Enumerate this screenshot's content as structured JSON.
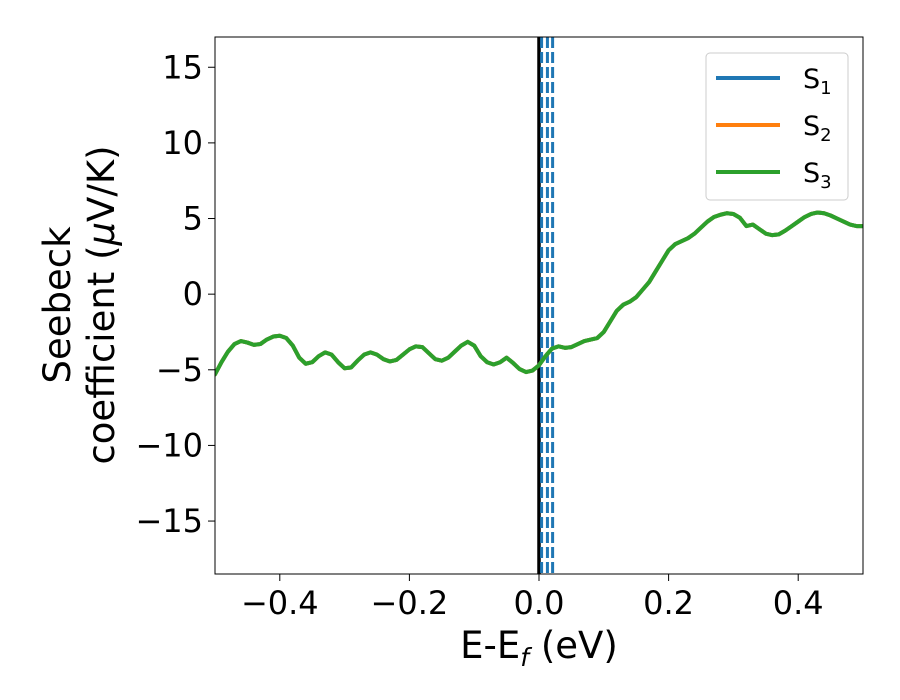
{
  "chart_data": {
    "type": "line",
    "xlabel": "E-E",
    "xlabel_sub": "f",
    "xlabel_unit": " (eV)",
    "ylabel_line1": "Seebeck",
    "ylabel_line2_prefix": "coefficient  (",
    "ylabel_mu": "μ",
    "ylabel_line2_suffix": "V/K)",
    "xlim": [
      -0.5,
      0.5
    ],
    "ylim": [
      -18.5,
      17
    ],
    "xticks": [
      -0.4,
      -0.2,
      0.0,
      0.2,
      0.4
    ],
    "xtick_labels": [
      "−0.4",
      "−0.2",
      "0.0",
      "0.2",
      "0.4"
    ],
    "yticks": [
      -15,
      -10,
      -5,
      0,
      5,
      10,
      15
    ],
    "ytick_labels": [
      "−15",
      "−10",
      "−5",
      "0",
      "5",
      "10",
      "15"
    ],
    "grid": false,
    "legend_position": "top-right",
    "x": [
      -0.5,
      -0.49,
      -0.48,
      -0.47,
      -0.46,
      -0.45,
      -0.44,
      -0.43,
      -0.42,
      -0.41,
      -0.4,
      -0.39,
      -0.38,
      -0.37,
      -0.36,
      -0.35,
      -0.34,
      -0.33,
      -0.32,
      -0.31,
      -0.3,
      -0.29,
      -0.28,
      -0.27,
      -0.26,
      -0.25,
      -0.24,
      -0.23,
      -0.22,
      -0.21,
      -0.2,
      -0.19,
      -0.18,
      -0.17,
      -0.16,
      -0.15,
      -0.14,
      -0.13,
      -0.12,
      -0.11,
      -0.1,
      -0.09,
      -0.08,
      -0.07,
      -0.06,
      -0.05,
      -0.04,
      -0.03,
      -0.02,
      -0.01,
      0.0,
      0.01,
      0.02,
      0.03,
      0.04,
      0.05,
      0.06,
      0.07,
      0.08,
      0.09,
      0.1,
      0.11,
      0.12,
      0.13,
      0.14,
      0.15,
      0.16,
      0.17,
      0.18,
      0.19,
      0.2,
      0.21,
      0.22,
      0.23,
      0.24,
      0.25,
      0.26,
      0.27,
      0.28,
      0.29,
      0.3,
      0.31,
      0.32,
      0.33,
      0.34,
      0.35,
      0.36,
      0.37,
      0.38,
      0.39,
      0.4,
      0.41,
      0.42,
      0.43,
      0.44,
      0.45,
      0.46,
      0.47,
      0.48,
      0.49,
      0.5
    ],
    "series": [
      {
        "name": "S",
        "sub": "1",
        "color": "#1f77b4",
        "values": [
          -5.3,
          -4.5,
          -3.8,
          -3.3,
          -3.1,
          -3.2,
          -3.35,
          -3.3,
          -3.0,
          -2.8,
          -2.75,
          -2.9,
          -3.4,
          -4.2,
          -4.6,
          -4.5,
          -4.1,
          -3.85,
          -4.0,
          -4.5,
          -4.9,
          -4.85,
          -4.4,
          -4.0,
          -3.85,
          -4.0,
          -4.3,
          -4.45,
          -4.35,
          -4.0,
          -3.65,
          -3.45,
          -3.5,
          -3.9,
          -4.3,
          -4.4,
          -4.2,
          -3.8,
          -3.4,
          -3.15,
          -3.4,
          -4.1,
          -4.5,
          -4.65,
          -4.5,
          -4.2,
          -4.55,
          -4.95,
          -5.15,
          -5.05,
          -4.7,
          -4.1,
          -3.6,
          -3.45,
          -3.55,
          -3.5,
          -3.3,
          -3.1,
          -3.0,
          -2.9,
          -2.5,
          -1.8,
          -1.1,
          -0.7,
          -0.5,
          -0.2,
          0.3,
          0.8,
          1.5,
          2.2,
          2.9,
          3.3,
          3.5,
          3.7,
          4.0,
          4.4,
          4.8,
          5.1,
          5.25,
          5.35,
          5.3,
          5.05,
          4.5,
          4.6,
          4.3,
          4.0,
          3.9,
          3.95,
          4.2,
          4.5,
          4.8,
          5.1,
          5.3,
          5.4,
          5.35,
          5.2,
          5.0,
          4.8,
          4.6,
          4.5,
          4.5
        ]
      },
      {
        "name": "S",
        "sub": "2",
        "color": "#ff7f0e",
        "values": [
          -5.3,
          -4.5,
          -3.8,
          -3.3,
          -3.1,
          -3.2,
          -3.35,
          -3.3,
          -3.0,
          -2.8,
          -2.75,
          -2.9,
          -3.4,
          -4.2,
          -4.6,
          -4.5,
          -4.1,
          -3.85,
          -4.0,
          -4.5,
          -4.9,
          -4.85,
          -4.4,
          -4.0,
          -3.85,
          -4.0,
          -4.3,
          -4.45,
          -4.35,
          -4.0,
          -3.65,
          -3.45,
          -3.5,
          -3.9,
          -4.3,
          -4.4,
          -4.2,
          -3.8,
          -3.4,
          -3.15,
          -3.4,
          -4.1,
          -4.5,
          -4.65,
          -4.5,
          -4.2,
          -4.55,
          -4.95,
          -5.15,
          -5.05,
          -4.7,
          -4.1,
          -3.6,
          -3.45,
          -3.55,
          -3.5,
          -3.3,
          -3.1,
          -3.0,
          -2.9,
          -2.5,
          -1.8,
          -1.1,
          -0.7,
          -0.5,
          -0.2,
          0.3,
          0.8,
          1.5,
          2.2,
          2.9,
          3.3,
          3.5,
          3.7,
          4.0,
          4.4,
          4.8,
          5.1,
          5.25,
          5.35,
          5.3,
          5.05,
          4.5,
          4.6,
          4.3,
          4.0,
          3.9,
          3.95,
          4.2,
          4.5,
          4.8,
          5.1,
          5.3,
          5.4,
          5.35,
          5.2,
          5.0,
          4.8,
          4.6,
          4.5,
          4.5
        ]
      },
      {
        "name": "S",
        "sub": "3",
        "color": "#2ca02c",
        "values": [
          -5.3,
          -4.5,
          -3.8,
          -3.3,
          -3.1,
          -3.2,
          -3.35,
          -3.3,
          -3.0,
          -2.8,
          -2.75,
          -2.9,
          -3.4,
          -4.2,
          -4.6,
          -4.5,
          -4.1,
          -3.85,
          -4.0,
          -4.5,
          -4.9,
          -4.85,
          -4.4,
          -4.0,
          -3.85,
          -4.0,
          -4.3,
          -4.45,
          -4.35,
          -4.0,
          -3.65,
          -3.45,
          -3.5,
          -3.9,
          -4.3,
          -4.4,
          -4.2,
          -3.8,
          -3.4,
          -3.15,
          -3.4,
          -4.1,
          -4.5,
          -4.65,
          -4.5,
          -4.2,
          -4.55,
          -4.95,
          -5.15,
          -5.05,
          -4.7,
          -4.1,
          -3.6,
          -3.45,
          -3.55,
          -3.5,
          -3.3,
          -3.1,
          -3.0,
          -2.9,
          -2.5,
          -1.8,
          -1.1,
          -0.7,
          -0.5,
          -0.2,
          0.3,
          0.8,
          1.5,
          2.2,
          2.9,
          3.3,
          3.5,
          3.7,
          4.0,
          4.4,
          4.8,
          5.1,
          5.25,
          5.35,
          5.3,
          5.05,
          4.5,
          4.6,
          4.3,
          4.0,
          3.9,
          3.95,
          4.2,
          4.5,
          4.8,
          5.1,
          5.3,
          5.4,
          5.35,
          5.2,
          5.0,
          4.8,
          4.6,
          4.5,
          4.5
        ]
      }
    ],
    "vlines": [
      {
        "x": 0.0,
        "style": "solid",
        "color": "#000000"
      },
      {
        "x": 0.004,
        "style": "dashed",
        "color": "#1f77b4"
      },
      {
        "x": 0.013,
        "style": "dashed",
        "color": "#1f77b4"
      },
      {
        "x": 0.021,
        "style": "dashed",
        "color": "#1f77b4"
      }
    ]
  }
}
